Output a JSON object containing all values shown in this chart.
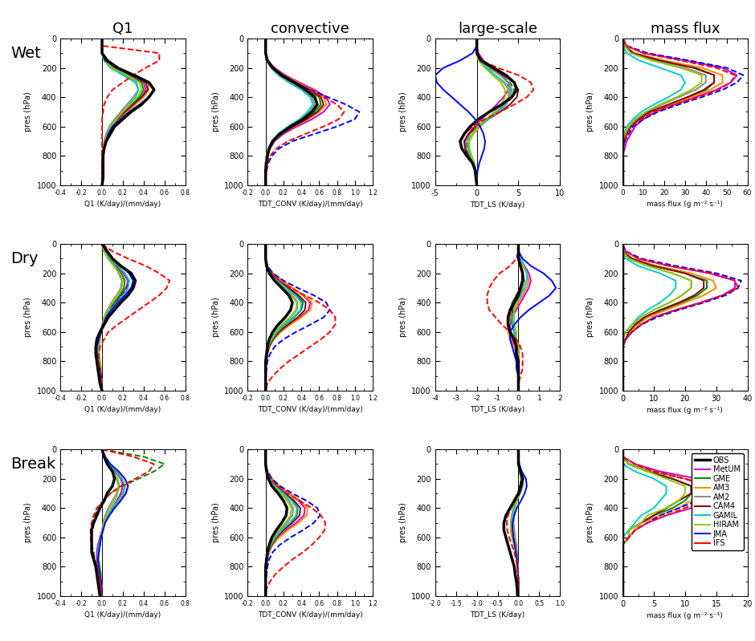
{
  "col_titles": [
    "Q1",
    "convective",
    "large-scale",
    "mass flux"
  ],
  "row_titles": [
    "Wet",
    "Dry",
    "Break"
  ],
  "col1_xlabel": "Q1 (K/day)/(mm/day)",
  "col2_xlabel": "TDT_CONV (K/day)/(mm/day)",
  "col3_xlabel": "TDT_LS (K/day)",
  "col4_xlabel": "mass flux (g m⁻² s⁻¹)",
  "col1_xlim": [
    -0.4,
    0.8
  ],
  "col2_xlim": [
    -0.2,
    1.2
  ],
  "col3_xlim_wet": [
    -5,
    10
  ],
  "col3_xlim_dry": [
    -4,
    2
  ],
  "col3_xlim_break": [
    -2.0,
    1.0
  ],
  "col4_xlim_wet": [
    0,
    60
  ],
  "col4_xlim_dry": [
    0,
    40
  ],
  "col4_xlim_break": [
    0,
    20
  ],
  "pres_ylabel": "pres (hPa)",
  "legend_labels": [
    "OBS",
    "MetUM",
    "GME",
    "AM3",
    "AM2",
    "CAM4",
    "GAMIL",
    "HIRAM",
    "JMA",
    "IFS"
  ],
  "colors": {
    "OBS": "#000000",
    "MetUM": "#cc00cc",
    "GME": "#008800",
    "AM3": "#ff8800",
    "AM2": "#888888",
    "CAM4": "#880000",
    "GAMIL": "#00cccc",
    "HIRAM": "#88cc00",
    "JMA": "#0000ff",
    "IFS": "#ff0000"
  },
  "linewidths": {
    "OBS": 2.5,
    "MetUM": 1.4,
    "GME": 1.4,
    "AM3": 1.4,
    "AM2": 1.4,
    "CAM4": 1.4,
    "GAMIL": 1.4,
    "HIRAM": 1.4,
    "JMA": 1.4,
    "IFS": 1.4
  }
}
